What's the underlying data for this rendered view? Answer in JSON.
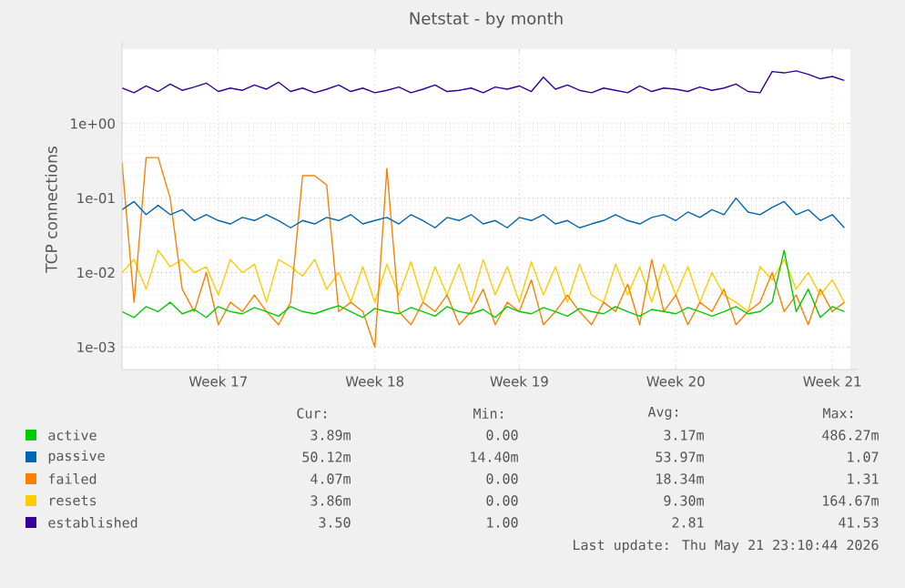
{
  "chart_data": {
    "type": "line",
    "title": "Netstat - by month",
    "ylabel": "TCP connections",
    "categories": [
      null,
      null,
      null,
      null,
      null,
      null,
      null,
      null,
      "Week 17",
      null,
      null,
      null,
      null,
      null,
      null,
      null,
      null,
      null,
      null,
      null,
      null,
      "Week 18",
      null,
      null,
      null,
      null,
      null,
      null,
      null,
      null,
      null,
      null,
      null,
      "Week 19",
      null,
      null,
      null,
      null,
      null,
      null,
      null,
      null,
      null,
      null,
      null,
      null,
      "Week 20",
      null,
      null,
      null,
      null,
      null,
      null,
      null,
      null,
      null,
      null,
      null,
      null,
      "Week 21",
      null
    ],
    "ylim": [
      0.0005,
      10
    ],
    "log": true,
    "yticks": [
      {
        "value": 0.001,
        "label": "1e-03"
      },
      {
        "value": 0.01,
        "label": "1e-02"
      },
      {
        "value": 0.1,
        "label": "1e-01"
      },
      {
        "value": 1,
        "label": "1e+00"
      }
    ],
    "grid": true,
    "legend": "bottom",
    "marker": "none",
    "line_style": "solid",
    "series": [
      {
        "name": "active",
        "color": "#00cc00",
        "values": [
          0.003,
          0.0025,
          0.0035,
          0.003,
          0.004,
          0.0028,
          0.0032,
          0.0025,
          0.0035,
          0.003,
          0.0028,
          0.0034,
          0.003,
          0.0026,
          0.0035,
          0.003,
          0.0028,
          0.0032,
          0.0036,
          0.003,
          0.0025,
          0.0033,
          0.003,
          0.0028,
          0.0034,
          0.003,
          0.0026,
          0.0035,
          0.003,
          0.0028,
          0.0032,
          0.0025,
          0.0035,
          0.003,
          0.0028,
          0.0034,
          0.003,
          0.0026,
          0.0033,
          0.003,
          0.0028,
          0.0035,
          0.003,
          0.0026,
          0.0032,
          0.003,
          0.0028,
          0.0034,
          0.003,
          0.0026,
          0.003,
          0.0035,
          0.0028,
          0.003,
          0.004,
          0.02,
          0.003,
          0.006,
          0.0025,
          0.0035,
          0.003
        ]
      },
      {
        "name": "passive",
        "color": "#0066b3",
        "values": [
          0.07,
          0.09,
          0.06,
          0.08,
          0.06,
          0.07,
          0.05,
          0.06,
          0.05,
          0.045,
          0.055,
          0.05,
          0.06,
          0.05,
          0.04,
          0.05,
          0.045,
          0.055,
          0.05,
          0.06,
          0.045,
          0.05,
          0.055,
          0.045,
          0.06,
          0.05,
          0.04,
          0.055,
          0.05,
          0.06,
          0.045,
          0.05,
          0.04,
          0.055,
          0.05,
          0.06,
          0.045,
          0.05,
          0.04,
          0.045,
          0.05,
          0.06,
          0.05,
          0.045,
          0.055,
          0.06,
          0.05,
          0.065,
          0.055,
          0.07,
          0.06,
          0.1,
          0.065,
          0.06,
          0.075,
          0.09,
          0.06,
          0.07,
          0.05,
          0.06,
          0.04
        ]
      },
      {
        "name": "failed",
        "color": "#ff8000",
        "values": [
          0.3,
          0.004,
          0.35,
          0.35,
          0.1,
          0.006,
          0.003,
          0.01,
          0.002,
          0.004,
          0.003,
          0.005,
          0.003,
          0.002,
          0.004,
          0.2,
          0.2,
          0.15,
          0.003,
          0.004,
          0.003,
          0.001,
          0.25,
          0.003,
          0.002,
          0.004,
          0.003,
          0.005,
          0.002,
          0.003,
          0.006,
          0.002,
          0.004,
          0.003,
          0.008,
          0.002,
          0.003,
          0.005,
          0.003,
          0.002,
          0.004,
          0.003,
          0.007,
          0.002,
          0.015,
          0.003,
          0.005,
          0.002,
          0.004,
          0.003,
          0.006,
          0.002,
          0.003,
          0.004,
          0.01,
          0.003,
          0.005,
          0.002,
          0.006,
          0.003,
          0.004
        ]
      },
      {
        "name": "resets",
        "color": "#ffcc00",
        "values": [
          0.01,
          0.015,
          0.006,
          0.02,
          0.012,
          0.015,
          0.01,
          0.012,
          0.005,
          0.015,
          0.01,
          0.013,
          0.004,
          0.015,
          0.012,
          0.009,
          0.015,
          0.006,
          0.01,
          0.004,
          0.012,
          0.004,
          0.013,
          0.005,
          0.014,
          0.004,
          0.012,
          0.005,
          0.013,
          0.004,
          0.015,
          0.005,
          0.012,
          0.004,
          0.014,
          0.005,
          0.012,
          0.004,
          0.013,
          0.005,
          0.004,
          0.013,
          0.005,
          0.012,
          0.004,
          0.013,
          0.005,
          0.012,
          0.004,
          0.01,
          0.005,
          0.004,
          0.003,
          0.012,
          0.008,
          0.015,
          0.006,
          0.01,
          0.005,
          0.008,
          0.004
        ]
      },
      {
        "name": "established",
        "color": "#330099",
        "values": [
          3.0,
          2.6,
          3.2,
          2.7,
          3.4,
          2.8,
          3.1,
          3.5,
          2.7,
          3.0,
          2.8,
          3.3,
          2.9,
          3.6,
          2.7,
          3.0,
          2.6,
          2.9,
          3.3,
          2.7,
          3.0,
          2.6,
          2.8,
          3.1,
          2.6,
          2.9,
          3.3,
          2.7,
          2.8,
          3.0,
          2.6,
          3.1,
          2.9,
          3.2,
          2.7,
          4.2,
          2.9,
          3.3,
          2.8,
          2.6,
          3.0,
          2.8,
          2.6,
          3.2,
          2.7,
          3.0,
          2.9,
          2.7,
          3.1,
          2.8,
          3.0,
          3.4,
          2.7,
          2.6,
          5.0,
          4.8,
          5.1,
          4.6,
          4.0,
          4.3,
          3.8
        ]
      }
    ],
    "annotations": [
      "Cur:",
      "Min:",
      "Avg:",
      "Max:",
      "3.89m",
      "0.00",
      "3.17m",
      "486.27m",
      "50.12m",
      "14.40m",
      "53.97m",
      "1.07",
      "4.07m",
      "0.00",
      "18.34m",
      "1.31",
      "3.86m",
      "0.00",
      "9.30m",
      "164.67m",
      "3.50",
      "1.00",
      "2.81",
      "41.53",
      "Last update: Thu May 21 23:10:44 2026"
    ]
  }
}
